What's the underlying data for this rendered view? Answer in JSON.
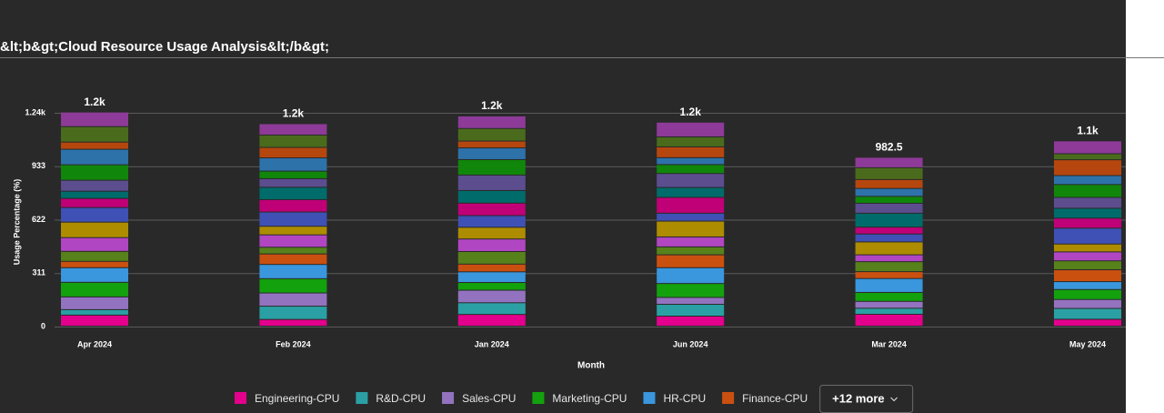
{
  "chart_data": {
    "type": "stacked_bar",
    "title": "&lt;b&gt;Cloud Resource Usage Analysis&lt;/b&gt;",
    "x_label": "Month",
    "y_label": "Usage Percentage (%)",
    "categories": [
      "Apr 2024",
      "Feb 2024",
      "Jan 2024",
      "Jun 2024",
      "Mar 2024",
      "May 2024"
    ],
    "total_labels": [
      "1.2k",
      "1.2k",
      "1.2k",
      "1.2k",
      "982.5",
      "1.1k"
    ],
    "ylim": [
      0,
      1244
    ],
    "yticks": [
      0,
      311,
      622,
      933,
      {
        "value": 1244,
        "label": "1.24k"
      }
    ],
    "grid": true,
    "legend_more": "+12 more",
    "series": [
      {
        "name": "Engineering-CPU",
        "color": "#e3008c",
        "values": [
          64,
          39,
          68,
          58,
          69,
          40
        ]
      },
      {
        "name": "R&D-CPU",
        "color": "#2aa0a4",
        "values": [
          32,
          77,
          68,
          69,
          35,
          63
        ]
      },
      {
        "name": "Sales-CPU",
        "color": "#9373c0",
        "values": [
          74,
          77,
          73,
          40,
          40,
          52
        ]
      },
      {
        "name": "Marketing-CPU",
        "color": "#13a10e",
        "values": [
          85,
          83,
          45,
          81,
          52,
          58
        ]
      },
      {
        "name": "HR-CPU",
        "color": "#3a96dd",
        "values": [
          85,
          83,
          62,
          92,
          81,
          46
        ]
      },
      {
        "name": "Finance-CPU",
        "color": "#ca5010",
        "values": [
          37,
          61,
          45,
          75,
          40,
          69
        ]
      },
      {
        "color": "#57811b",
        "values": [
          58,
          39,
          73,
          46,
          58,
          52
        ]
      },
      {
        "color": "#b146c2",
        "values": [
          80,
          72,
          73,
          58,
          40,
          52
        ]
      },
      {
        "color": "#ae8c00",
        "values": [
          90,
          50,
          68,
          92,
          75,
          46
        ]
      },
      {
        "color": "#3f51b5",
        "values": [
          85,
          83,
          68,
          46,
          46,
          92
        ]
      },
      {
        "color": "#bf0077",
        "values": [
          53,
          72,
          73,
          92,
          40,
          58
        ]
      },
      {
        "color": "#006b6b",
        "values": [
          42,
          72,
          73,
          58,
          81,
          58
        ]
      },
      {
        "color": "#5c4d8f",
        "values": [
          64,
          50,
          90,
          81,
          58,
          63
        ]
      },
      {
        "color": "#10860b",
        "values": [
          90,
          44,
          90,
          52,
          40,
          75
        ]
      },
      {
        "color": "#2e72aa",
        "values": [
          90,
          77,
          68,
          40,
          46,
          52
        ]
      },
      {
        "color": "#b5470e",
        "values": [
          42,
          61,
          40,
          63,
          52,
          92
        ]
      },
      {
        "color": "#4a6b1c",
        "values": [
          90,
          72,
          73,
          58,
          69,
          35
        ]
      },
      {
        "color": "#8e3a98",
        "values": [
          85,
          66,
          73,
          86,
          60.5,
          75
        ]
      }
    ]
  }
}
